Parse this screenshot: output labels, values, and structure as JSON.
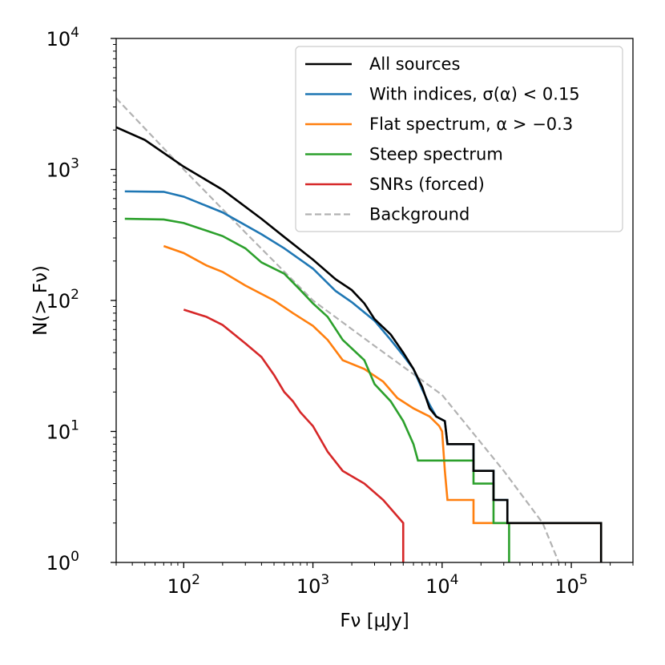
{
  "chart_data": {
    "type": "line",
    "title": "",
    "xlabel": "Fν [μJy]",
    "ylabel": "N(> Fν)",
    "xscale": "log",
    "yscale": "log",
    "xlim": [
      30,
      300000
    ],
    "ylim": [
      1,
      10000
    ],
    "grid": false,
    "legend_loc": "top-right",
    "x_ticks": [
      {
        "value": 100,
        "base": "10",
        "exp": "2"
      },
      {
        "value": 1000,
        "base": "10",
        "exp": "3"
      },
      {
        "value": 10000,
        "base": "10",
        "exp": "4"
      },
      {
        "value": 100000,
        "base": "10",
        "exp": "5"
      }
    ],
    "y_ticks": [
      {
        "value": 1,
        "base": "10",
        "exp": "0"
      },
      {
        "value": 10,
        "base": "10",
        "exp": "1"
      },
      {
        "value": 100,
        "base": "10",
        "exp": "2"
      },
      {
        "value": 1000,
        "base": "10",
        "exp": "3"
      },
      {
        "value": 10000,
        "base": "10",
        "exp": "4"
      }
    ],
    "series": [
      {
        "name": "All sources",
        "color": "#000000",
        "dash": "solid",
        "step": true,
        "points": [
          [
            30,
            2100
          ],
          [
            50,
            1680
          ],
          [
            100,
            1050
          ],
          [
            200,
            700
          ],
          [
            400,
            420
          ],
          [
            600,
            305
          ],
          [
            1000,
            205
          ],
          [
            1500,
            145
          ],
          [
            2000,
            120
          ],
          [
            2500,
            95
          ],
          [
            3000,
            72
          ],
          [
            4000,
            55
          ],
          [
            5000,
            40
          ],
          [
            6000,
            30
          ],
          [
            7000,
            22
          ],
          [
            8000,
            15
          ],
          [
            9000,
            13
          ],
          [
            10500,
            12
          ],
          [
            11000,
            8
          ],
          [
            17500,
            8
          ],
          [
            17500,
            5
          ],
          [
            25000,
            5
          ],
          [
            25000,
            3
          ],
          [
            32000,
            3
          ],
          [
            32000,
            2
          ],
          [
            170000,
            2
          ],
          [
            170000,
            1
          ]
        ]
      },
      {
        "name": "With indices, σ(α) < 0.15",
        "color": "#1f77b4",
        "dash": "solid",
        "step": true,
        "points": [
          [
            35,
            680
          ],
          [
            70,
            675
          ],
          [
            100,
            620
          ],
          [
            200,
            470
          ],
          [
            400,
            320
          ],
          [
            600,
            250
          ],
          [
            1000,
            175
          ],
          [
            1500,
            118
          ],
          [
            2000,
            97
          ],
          [
            3000,
            70
          ],
          [
            4000,
            50
          ],
          [
            5000,
            38
          ],
          [
            6000,
            30
          ],
          [
            7000,
            21
          ],
          [
            8000,
            16
          ],
          [
            9000,
            13
          ],
          [
            10500,
            12
          ],
          [
            11000,
            8
          ],
          [
            17500,
            8
          ],
          [
            17500,
            5
          ],
          [
            25000,
            5
          ],
          [
            25000,
            3
          ],
          [
            32000,
            3
          ],
          [
            32000,
            2
          ],
          [
            170000,
            2
          ],
          [
            170000,
            1
          ]
        ]
      },
      {
        "name": "Flat spectrum, α > −0.3",
        "color": "#ff7f0e",
        "dash": "solid",
        "step": true,
        "points": [
          [
            70,
            260
          ],
          [
            100,
            230
          ],
          [
            150,
            185
          ],
          [
            200,
            165
          ],
          [
            300,
            130
          ],
          [
            500,
            100
          ],
          [
            700,
            80
          ],
          [
            1000,
            64
          ],
          [
            1300,
            50
          ],
          [
            1700,
            35
          ],
          [
            2500,
            30
          ],
          [
            3500,
            24
          ],
          [
            4500,
            18
          ],
          [
            6000,
            15
          ],
          [
            8000,
            13
          ],
          [
            9500,
            11
          ],
          [
            10000,
            10
          ],
          [
            10500,
            5
          ],
          [
            11000,
            3
          ],
          [
            17500,
            3
          ],
          [
            17500,
            2
          ],
          [
            170000,
            2
          ],
          [
            170000,
            1
          ]
        ]
      },
      {
        "name": "Steep spectrum",
        "color": "#2ca02c",
        "dash": "solid",
        "step": true,
        "points": [
          [
            35,
            420
          ],
          [
            70,
            415
          ],
          [
            100,
            390
          ],
          [
            200,
            310
          ],
          [
            300,
            250
          ],
          [
            400,
            195
          ],
          [
            600,
            160
          ],
          [
            800,
            120
          ],
          [
            1000,
            95
          ],
          [
            1300,
            75
          ],
          [
            1700,
            50
          ],
          [
            2500,
            35
          ],
          [
            3000,
            23
          ],
          [
            4000,
            17
          ],
          [
            5000,
            12
          ],
          [
            6000,
            8
          ],
          [
            6500,
            6
          ],
          [
            10500,
            6
          ],
          [
            17500,
            6
          ],
          [
            17500,
            4
          ],
          [
            25000,
            4
          ],
          [
            25000,
            2
          ],
          [
            33000,
            2
          ],
          [
            33000,
            1
          ]
        ]
      },
      {
        "name": "SNRs (forced)",
        "color": "#d62728",
        "dash": "solid",
        "step": true,
        "points": [
          [
            100,
            85
          ],
          [
            150,
            75
          ],
          [
            200,
            65
          ],
          [
            300,
            47
          ],
          [
            400,
            37
          ],
          [
            500,
            27
          ],
          [
            600,
            20
          ],
          [
            700,
            17
          ],
          [
            800,
            14
          ],
          [
            1000,
            11
          ],
          [
            1300,
            7
          ],
          [
            1700,
            5
          ],
          [
            2500,
            4
          ],
          [
            3500,
            3
          ],
          [
            5000,
            2
          ],
          [
            5000,
            1
          ]
        ]
      },
      {
        "name": "Background",
        "color": "#b2b2b2",
        "dash": "dashed",
        "step": false,
        "points": [
          [
            30,
            3500
          ],
          [
            100,
            1000
          ],
          [
            300,
            330
          ],
          [
            1000,
            100
          ],
          [
            3000,
            45
          ],
          [
            10000,
            19
          ],
          [
            30000,
            5
          ],
          [
            60000,
            2
          ],
          [
            80000,
            1
          ]
        ]
      }
    ]
  }
}
